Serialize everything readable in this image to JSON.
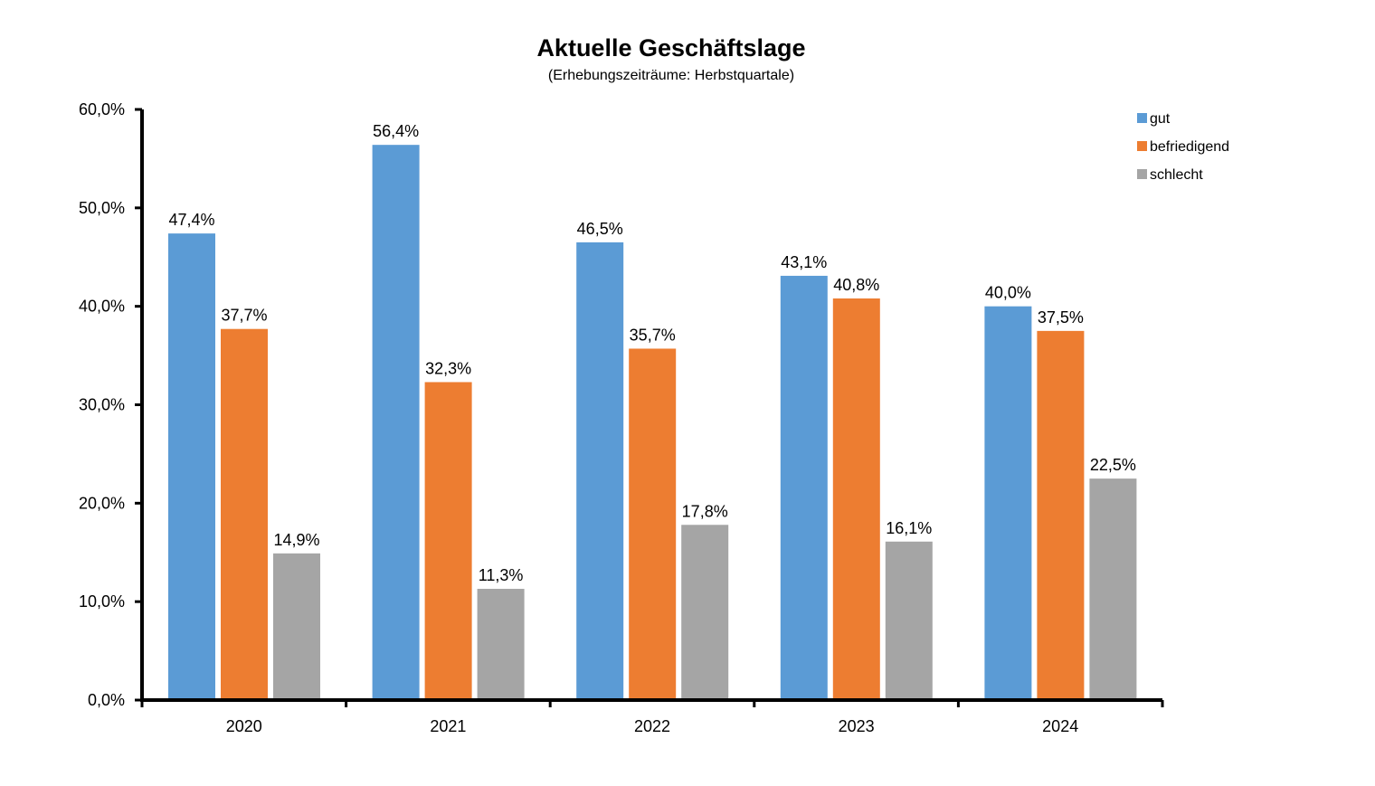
{
  "chart_data": {
    "type": "bar",
    "title": "Aktuelle Geschäftslage",
    "subtitle": "(Erhebungszeiträume: Herbstquartale)",
    "xlabel": "",
    "ylabel": "",
    "categories": [
      "2020",
      "2021",
      "2022",
      "2023",
      "2024"
    ],
    "series": [
      {
        "name": "gut",
        "color": "#5B9BD5",
        "values": [
          47.4,
          56.4,
          46.5,
          43.1,
          40.0
        ],
        "labels": [
          "47,4%",
          "56,4%",
          "46,5%",
          "43,1%",
          "40,0%"
        ]
      },
      {
        "name": "befriedigend",
        "color": "#ED7D31",
        "values": [
          37.7,
          32.3,
          35.7,
          40.8,
          37.5
        ],
        "labels": [
          "37,7%",
          "32,3%",
          "35,7%",
          "40,8%",
          "37,5%"
        ]
      },
      {
        "name": "schlecht",
        "color": "#A5A5A5",
        "values": [
          14.9,
          11.3,
          17.8,
          16.1,
          22.5
        ],
        "labels": [
          "14,9%",
          "11,3%",
          "17,8%",
          "16,1%",
          "22,5%"
        ]
      }
    ],
    "ylim": [
      0,
      60
    ],
    "yticks": [
      0,
      10,
      20,
      30,
      40,
      50,
      60
    ],
    "ytick_labels": [
      "0,0%",
      "10,0%",
      "20,0%",
      "30,0%",
      "40,0%",
      "50,0%",
      "60,0%"
    ],
    "grid": false,
    "legend_position": "top-right"
  }
}
